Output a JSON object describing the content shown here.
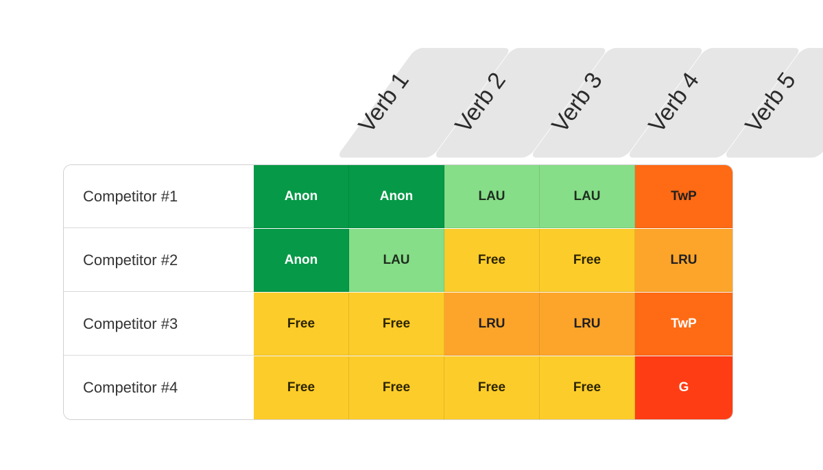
{
  "columns": [
    "Verb 1",
    "Verb 2",
    "Verb 3",
    "Verb 4",
    "Verb 5"
  ],
  "rows": [
    {
      "label": "Competitor #1",
      "cells": [
        "Anon",
        "Anon",
        "LAU",
        "LAU",
        "TwP"
      ]
    },
    {
      "label": "Competitor #2",
      "cells": [
        "Anon",
        "LAU",
        "Free",
        "Free",
        "LRU"
      ]
    },
    {
      "label": "Competitor #3",
      "cells": [
        "Free",
        "Free",
        "LRU",
        "LRU",
        "TwP"
      ]
    },
    {
      "label": "Competitor #4",
      "cells": [
        "Free",
        "Free",
        "Free",
        "Free",
        "G"
      ]
    }
  ],
  "cell_colors": [
    [
      "#069947",
      "#069947",
      "#86de88",
      "#86de88",
      "#ff6a14"
    ],
    [
      "#069947",
      "#86de88",
      "#fccc2a",
      "#fccc2a",
      "#fda52a"
    ],
    [
      "#fccc2a",
      "#fccc2a",
      "#fda52a",
      "#fda52a",
      "#ff6a14"
    ],
    [
      "#fccc2a",
      "#fccc2a",
      "#fccc2a",
      "#fccc2a",
      "#ff3d14"
    ]
  ],
  "cell_text_colors": [
    [
      "#ffffff",
      "#ffffff",
      "#1f2d1f",
      "#1f2d1f",
      "#1f1f1f"
    ],
    [
      "#ffffff",
      "#1f2d1f",
      "#2b2400",
      "#2b2400",
      "#1f1f1f"
    ],
    [
      "#2b2400",
      "#2b2400",
      "#1f1f1f",
      "#1f1f1f",
      "#ffffff"
    ],
    [
      "#2b2400",
      "#2b2400",
      "#2b2400",
      "#2b2400",
      "#ffffff"
    ]
  ]
}
